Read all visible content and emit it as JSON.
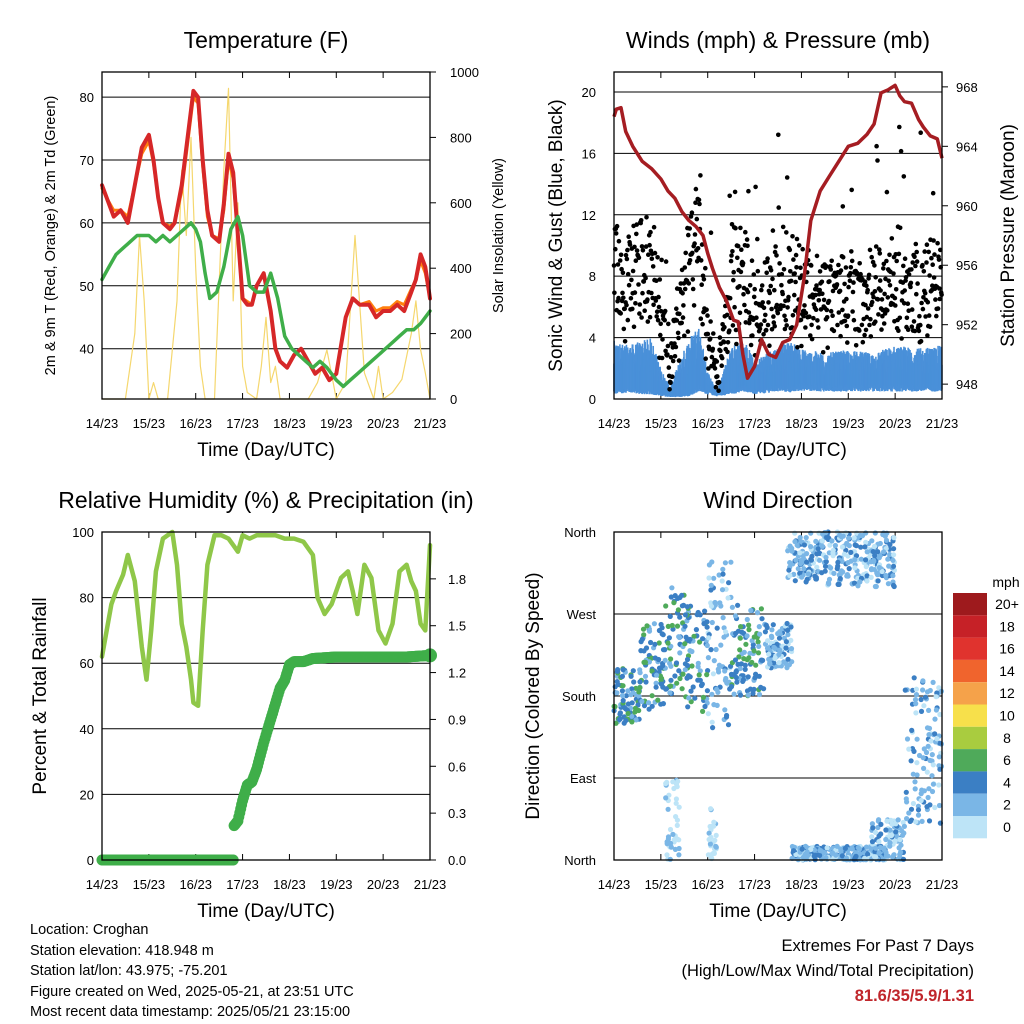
{
  "chart_data": [
    {
      "id": "temp",
      "type": "line",
      "title": "Temperature (F)",
      "xlabel": "Time (Day/UTC)",
      "ylabel": "2m & 9m T (Red, Orange) & 2m Td (Green)",
      "y2label": "Solar Insolation (Yellow)",
      "xticks": [
        "14/23",
        "15/23",
        "16/23",
        "17/23",
        "18/23",
        "19/23",
        "20/23",
        "21/23"
      ],
      "xlim": [
        0,
        7
      ],
      "ylim": [
        32,
        84
      ],
      "yticks": [
        40,
        50,
        60,
        70,
        80
      ],
      "y2lim": [
        0,
        1000
      ],
      "y2ticks": [
        0,
        200,
        400,
        600,
        800,
        1000
      ],
      "grid": true,
      "series": [
        {
          "color": "#d62728",
          "x": [
            0,
            0.1,
            0.25,
            0.4,
            0.55,
            0.7,
            0.85,
            1.0,
            1.1,
            1.2,
            1.3,
            1.45,
            1.55,
            1.7,
            1.85,
            1.95,
            2.05,
            2.15,
            2.25,
            2.35,
            2.5,
            2.6,
            2.7,
            2.8,
            2.9,
            3.0,
            3.1,
            3.2,
            3.3,
            3.45,
            3.6,
            3.7,
            3.8,
            3.95,
            4.1,
            4.25,
            4.4,
            4.55,
            4.7,
            4.85,
            5.0,
            5.2,
            5.35,
            5.5,
            5.7,
            5.85,
            6.0,
            6.15,
            6.3,
            6.45,
            6.6,
            6.7,
            6.8,
            6.9,
            7.0
          ],
          "y": [
            66,
            64,
            61,
            62,
            60,
            66,
            72,
            74,
            70,
            64,
            60,
            59,
            60,
            66,
            75,
            81,
            80,
            70,
            62,
            58,
            57,
            63,
            71,
            68,
            58,
            48,
            47,
            47,
            50,
            52,
            46,
            40,
            38,
            37,
            39,
            40,
            38,
            36,
            37,
            35,
            36,
            45,
            48,
            47,
            47,
            45,
            46,
            46,
            47,
            46,
            49,
            51,
            55,
            53,
            48
          ]
        },
        {
          "color": "#ff7f0e",
          "x": [
            0,
            0.1,
            0.25,
            0.4,
            0.55,
            0.7,
            0.85,
            1.0,
            1.1,
            1.2,
            1.3,
            1.45,
            1.55,
            1.7,
            1.85,
            1.95,
            2.05,
            2.15,
            2.25,
            2.35,
            2.5,
            2.6,
            2.7,
            2.8,
            2.9,
            3.0,
            3.1,
            3.2,
            3.3,
            3.45,
            3.6,
            3.7,
            3.8,
            3.95,
            4.1,
            4.25,
            4.4,
            4.55,
            4.7,
            4.85,
            5.0,
            5.2,
            5.35,
            5.5,
            5.7,
            5.85,
            6.0,
            6.15,
            6.3,
            6.45,
            6.6,
            6.7,
            6.8,
            6.9,
            7.0
          ],
          "y": [
            65.5,
            64,
            62,
            62,
            61,
            66,
            71,
            73,
            69.5,
            64,
            60,
            59.5,
            60,
            65,
            74,
            80,
            79,
            69,
            61,
            58,
            57.5,
            62,
            70,
            67,
            58,
            48,
            47.5,
            47,
            50,
            52,
            46,
            40,
            38,
            37,
            39,
            40,
            38,
            36,
            37,
            35,
            36,
            45,
            48,
            47,
            47.5,
            46,
            46.5,
            46.5,
            47.5,
            47,
            49.5,
            51,
            54,
            52,
            48
          ]
        },
        {
          "color": "#3fae49",
          "x": [
            0,
            0.15,
            0.3,
            0.45,
            0.6,
            0.75,
            0.9,
            1.0,
            1.15,
            1.3,
            1.45,
            1.6,
            1.75,
            1.9,
            2.0,
            2.1,
            2.2,
            2.3,
            2.45,
            2.6,
            2.75,
            2.9,
            3.0,
            3.15,
            3.3,
            3.45,
            3.6,
            3.75,
            3.9,
            4.05,
            4.2,
            4.35,
            4.5,
            4.65,
            4.8,
            4.9,
            5.0,
            5.15,
            5.3,
            5.45,
            5.6,
            5.75,
            5.9,
            6.05,
            6.2,
            6.35,
            6.5,
            6.65,
            6.8,
            6.9,
            7.0
          ],
          "y": [
            51,
            53,
            55,
            56,
            57,
            58,
            58,
            58,
            57,
            58,
            57,
            58,
            59,
            60,
            59,
            57,
            52,
            48,
            49,
            53,
            59,
            61,
            58,
            50,
            49,
            49,
            52,
            48,
            42,
            40,
            39,
            38,
            37,
            38,
            37,
            36,
            35,
            34,
            35,
            36,
            37,
            38,
            39,
            40,
            41,
            42,
            43,
            43,
            44,
            45,
            46
          ]
        },
        {
          "color": "#f5d76e",
          "axis": "y2",
          "x": [
            0,
            0.5,
            0.7,
            0.8,
            0.9,
            1.0,
            1.1,
            1.2,
            1.4,
            1.6,
            1.7,
            1.8,
            1.9,
            2.0,
            2.1,
            2.2,
            2.4,
            2.6,
            2.7,
            2.8,
            2.9,
            3.0,
            3.1,
            3.3,
            3.4,
            3.5,
            3.6,
            3.7,
            3.8,
            4.0,
            4.2,
            4.4,
            4.6,
            4.8,
            5.0,
            5.2,
            5.4,
            5.6,
            5.8,
            5.9,
            6.0,
            6.2,
            6.4,
            6.6,
            6.7,
            6.8,
            6.9,
            7.0
          ],
          "y": [
            0,
            0,
            200,
            500,
            300,
            0,
            50,
            0,
            0,
            300,
            700,
            500,
            800,
            400,
            100,
            0,
            0,
            700,
            950,
            300,
            600,
            100,
            20,
            0,
            100,
            250,
            50,
            100,
            0,
            0,
            0,
            0,
            50,
            150,
            0,
            50,
            500,
            80,
            0,
            100,
            0,
            20,
            60,
            200,
            300,
            150,
            80,
            0
          ]
        }
      ]
    },
    {
      "id": "wind",
      "type": "scatter",
      "title": "Winds (mph) & Pressure (mb)",
      "xlabel": "Time (Day/UTC)",
      "ylabel": "Sonic Wind & Gust (Blue, Black)",
      "y2label": "Station Pressure (Maroon)",
      "xticks": [
        "14/23",
        "15/23",
        "16/23",
        "17/23",
        "18/23",
        "19/23",
        "20/23",
        "21/23"
      ],
      "xlim": [
        0,
        7
      ],
      "ylim": [
        0,
        21.3
      ],
      "yticks": [
        0,
        4,
        8,
        12,
        16,
        20
      ],
      "y2lim": [
        947.0,
        969.0
      ],
      "y2ticks": [
        948,
        952,
        956,
        960,
        964,
        968
      ],
      "grid": true,
      "wind_mean_envelope": {
        "color": "#4a90d9",
        "x": [
          0,
          0.3,
          0.6,
          0.8,
          1.0,
          1.2,
          1.4,
          1.6,
          1.8,
          2.0,
          2.2,
          2.5,
          2.8,
          3.0,
          3.2,
          3.5,
          3.8,
          4.0,
          4.5,
          5.0,
          5.5,
          6.0,
          6.5,
          7.0
        ],
        "low": [
          0.5,
          0.7,
          0.5,
          0.5,
          0.3,
          0.2,
          0.2,
          0.3,
          0.8,
          0.5,
          0.3,
          0.5,
          0.8,
          0.5,
          0.6,
          0.8,
          0.7,
          0.9,
          0.8,
          0.8,
          0.8,
          0.8,
          0.8,
          0.8
        ],
        "high": [
          3.8,
          3.5,
          3.8,
          4.0,
          2.0,
          0.8,
          2.5,
          4.0,
          5.0,
          1.8,
          0.5,
          3.5,
          3.8,
          2.5,
          3.0,
          3.5,
          3.8,
          3.3,
          3.0,
          3.2,
          3.0,
          3.5,
          3.3,
          3.5
        ]
      },
      "gust_color": "#000000",
      "pressure": {
        "color": "#a51d22",
        "x": [
          0,
          0.05,
          0.15,
          0.25,
          0.4,
          0.6,
          0.8,
          1.0,
          1.15,
          1.3,
          1.45,
          1.6,
          1.75,
          1.9,
          2.0,
          2.1,
          2.25,
          2.4,
          2.55,
          2.65,
          2.75,
          2.85,
          3.0,
          3.15,
          3.3,
          3.45,
          3.6,
          3.75,
          3.9,
          4.05,
          4.2,
          4.4,
          4.6,
          4.8,
          5.0,
          5.2,
          5.4,
          5.55,
          5.7,
          5.85,
          6.0,
          6.1,
          6.2,
          6.35,
          6.5,
          6.6,
          6.75,
          6.9,
          7.0
        ],
        "y": [
          966.0,
          966.5,
          966.6,
          965.0,
          964.0,
          963.0,
          962.5,
          961.8,
          961.0,
          960.5,
          959.6,
          959.0,
          958.6,
          958.0,
          956.8,
          955.8,
          954.5,
          953.6,
          952.3,
          952.2,
          950.0,
          948.4,
          949.2,
          951.0,
          950.0,
          949.8,
          950.8,
          951.0,
          952.0,
          955.0,
          959.0,
          961.0,
          962.0,
          963.0,
          964.0,
          964.2,
          964.8,
          965.5,
          967.6,
          967.8,
          968.1,
          967.4,
          967.0,
          966.9,
          965.8,
          965.3,
          964.7,
          964.5,
          963.2
        ]
      }
    },
    {
      "id": "rh",
      "type": "line",
      "title": "Relative Humidity (%) & Precipitation (in)",
      "xlabel": "Time (Day/UTC)",
      "ylabel": "Percent & Total Rainfall",
      "xticks": [
        "14/23",
        "15/23",
        "16/23",
        "17/23",
        "18/23",
        "19/23",
        "20/23",
        "21/23"
      ],
      "xlim": [
        0,
        7
      ],
      "ylim": [
        0,
        100
      ],
      "yticks": [
        0,
        20,
        40,
        60,
        80,
        100
      ],
      "y2lim": [
        0,
        2.1
      ],
      "y2ticks": [
        "0.0",
        "0.3",
        "0.6",
        "0.9",
        "1.2",
        "1.5",
        "1.8"
      ],
      "grid": true,
      "series": [
        {
          "color": "#8fc749",
          "x": [
            0,
            0.1,
            0.2,
            0.3,
            0.45,
            0.55,
            0.7,
            0.85,
            0.95,
            1.05,
            1.15,
            1.3,
            1.5,
            1.6,
            1.7,
            1.8,
            1.9,
            1.95,
            2.05,
            2.15,
            2.25,
            2.4,
            2.55,
            2.7,
            2.8,
            2.9,
            3.0,
            3.15,
            3.3,
            3.5,
            3.7,
            3.9,
            4.1,
            4.3,
            4.5,
            4.6,
            4.75,
            4.9,
            5.1,
            5.25,
            5.35,
            5.45,
            5.6,
            5.75,
            5.9,
            6.05,
            6.2,
            6.35,
            6.5,
            6.6,
            6.7,
            6.8,
            6.9,
            7.0
          ],
          "y": [
            62,
            70,
            78,
            82,
            87,
            93,
            85,
            65,
            55,
            70,
            88,
            98,
            100,
            90,
            72,
            65,
            55,
            48,
            47,
            70,
            90,
            99,
            99,
            98,
            96,
            94,
            99,
            98,
            99,
            99,
            99,
            98,
            98,
            97,
            93,
            80,
            75,
            78,
            86,
            88,
            82,
            75,
            90,
            86,
            70,
            66,
            72,
            88,
            90,
            85,
            82,
            72,
            70,
            96
          ]
        },
        {
          "color": "#3fae49",
          "axis": "y2",
          "x": [
            0,
            0.5,
            1.0,
            1.5,
            2.0,
            2.5,
            2.8,
            2.82,
            2.9,
            3.0,
            3.1,
            3.2,
            3.3,
            3.45,
            3.55,
            3.7,
            3.8,
            3.9,
            4.0,
            4.1,
            4.3,
            4.5,
            5.0,
            5.5,
            6.0,
            6.5,
            7.0
          ],
          "y": [
            0,
            0,
            0,
            0,
            0,
            0,
            0.0,
            0.22,
            0.25,
            0.38,
            0.48,
            0.5,
            0.58,
            0.75,
            0.85,
            1.0,
            1.1,
            1.15,
            1.25,
            1.27,
            1.27,
            1.29,
            1.3,
            1.3,
            1.3,
            1.3,
            1.31
          ]
        }
      ]
    },
    {
      "id": "wdir",
      "type": "scatter",
      "title": "Wind Direction",
      "xlabel": "Time (Day/UTC)",
      "ylabel": "Direction (Colored By Speed)",
      "xticks": [
        "14/23",
        "15/23",
        "16/23",
        "17/23",
        "18/23",
        "19/23",
        "20/23",
        "21/23"
      ],
      "xlim": [
        0,
        7
      ],
      "ylim": [
        0,
        360
      ],
      "yticks": [
        "North",
        "East",
        "South",
        "West",
        "North"
      ],
      "grid": true,
      "legend_title": "mph",
      "legend_labels": [
        "20+",
        "18",
        "16",
        "14",
        "12",
        "10",
        "8",
        "6",
        "4",
        "2",
        "0"
      ],
      "legend_colors": [
        "#9e1a1d",
        "#c62127",
        "#e0332e",
        "#f0642d",
        "#f5a24a",
        "#f7e04b",
        "#a9cc3f",
        "#4faa5a",
        "#3b7fc4",
        "#7ab6e6",
        "#bde4f7"
      ],
      "groups": [
        {
          "x": [
            0,
            0.55
          ],
          "y": [
            150,
            210
          ],
          "speed": 4
        },
        {
          "x": [
            0.55,
            1.1
          ],
          "y": [
            165,
            260
          ],
          "speed": 4
        },
        {
          "x": [
            1.1,
            1.5
          ],
          "y": [
            180,
            300
          ],
          "speed": 4
        },
        {
          "x": [
            1.1,
            1.4
          ],
          "y": [
            0,
            90
          ],
          "speed": 1
        },
        {
          "x": [
            1.5,
            2.0
          ],
          "y": [
            160,
            280
          ],
          "speed": 4
        },
        {
          "x": [
            2.0,
            2.5
          ],
          "y": [
            140,
            330
          ],
          "speed": 2
        },
        {
          "x": [
            2.0,
            2.2
          ],
          "y": [
            0,
            60
          ],
          "speed": 1
        },
        {
          "x": [
            2.5,
            3.2
          ],
          "y": [
            180,
            280
          ],
          "speed": 4
        },
        {
          "x": [
            3.2,
            3.8
          ],
          "y": [
            210,
            260
          ],
          "speed": 2
        },
        {
          "x": [
            3.7,
            4.5
          ],
          "y": [
            305,
            360
          ],
          "speed": 2
        },
        {
          "x": [
            4.5,
            6.0
          ],
          "y": [
            300,
            360
          ],
          "speed": 2
        },
        {
          "x": [
            3.8,
            5.8
          ],
          "y": [
            0,
            15
          ],
          "speed": 2
        },
        {
          "x": [
            5.5,
            6.2
          ],
          "y": [
            0,
            45
          ],
          "speed": 2
        },
        {
          "x": [
            6.2,
            7.0
          ],
          "y": [
            40,
            200
          ],
          "speed": 2
        }
      ]
    }
  ],
  "info": {
    "location": "Location: Croghan",
    "elevation": "Station elevation: 418.948 m",
    "latlon": "Station lat/lon: 43.975; -75.201",
    "created": "Figure created on Wed, 2025-05-21, at 23:51 UTC",
    "recent": "Most recent data timestamp: 2025/05/21 23:15:00"
  },
  "extremes": {
    "line1": "Extremes For Past 7 Days",
    "line2": "(High/Low/Max Wind/Total Precipitation)",
    "values": "81.6/35/5.9/1.31"
  }
}
